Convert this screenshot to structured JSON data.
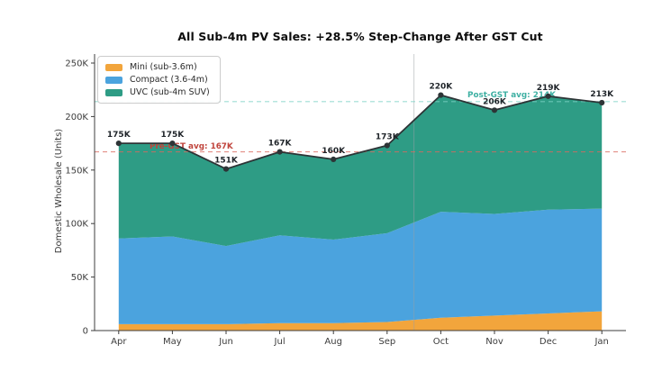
{
  "chart_data": {
    "type": "area",
    "stacked": true,
    "title": "All Sub-4m PV Sales: +28.5% Step-Change After GST Cut",
    "ylabel": "Domestic Wholesale (Units)",
    "x_tick_labels": [
      "Apr",
      "May",
      "Jun",
      "Jul",
      "Aug",
      "Sep",
      "Oct",
      "Nov",
      "Dec",
      "Jan"
    ],
    "y_ticks_k": [
      0,
      50,
      100,
      150,
      200,
      250
    ],
    "y_tick_labels": [
      "0",
      "50K",
      "100K",
      "150K",
      "200K",
      "250K"
    ],
    "ylim_k": [
      0,
      258
    ],
    "grid": false,
    "legend_position": "upper-left",
    "series": [
      {
        "name": "Mini (sub-3.6m)",
        "color": "#F2A53C",
        "values_k": [
          6,
          6,
          6,
          7,
          7,
          8,
          12,
          14,
          16,
          18
        ]
      },
      {
        "name": "Compact (3.6-4m)",
        "color": "#4BA3DE",
        "values_k": [
          80,
          82,
          73,
          82,
          78,
          83,
          99,
          95,
          97,
          96
        ]
      },
      {
        "name": "UVC (sub-4m SUV)",
        "color": "#2E9C85",
        "values_k": [
          89,
          87,
          72,
          78,
          75,
          82,
          109,
          97,
          106,
          99
        ]
      }
    ],
    "totals_k": [
      175,
      175,
      151,
      167,
      160,
      173,
      220,
      206,
      219,
      213
    ],
    "total_labels": [
      "175K",
      "175K",
      "151K",
      "167K",
      "160K",
      "173K",
      "220K",
      "206K",
      "219K",
      "213K"
    ],
    "total_line": {
      "color": "#2D3436",
      "marker": "circle",
      "label_color": "#1f2429"
    },
    "ref_lines": [
      {
        "label": "Pre-GST avg: 167K",
        "value_k": 167,
        "line_color": "#D96A5F",
        "text_color": "#C0443C"
      },
      {
        "label": "Post-GST avg: 214K",
        "value_k": 214,
        "line_color": "#7FD1C5",
        "text_color": "#3FB0A3"
      }
    ],
    "event_line": {
      "between": [
        "Sep",
        "Oct"
      ],
      "color": "#9AA0A6"
    },
    "axis_color": "#3c3c3c"
  }
}
